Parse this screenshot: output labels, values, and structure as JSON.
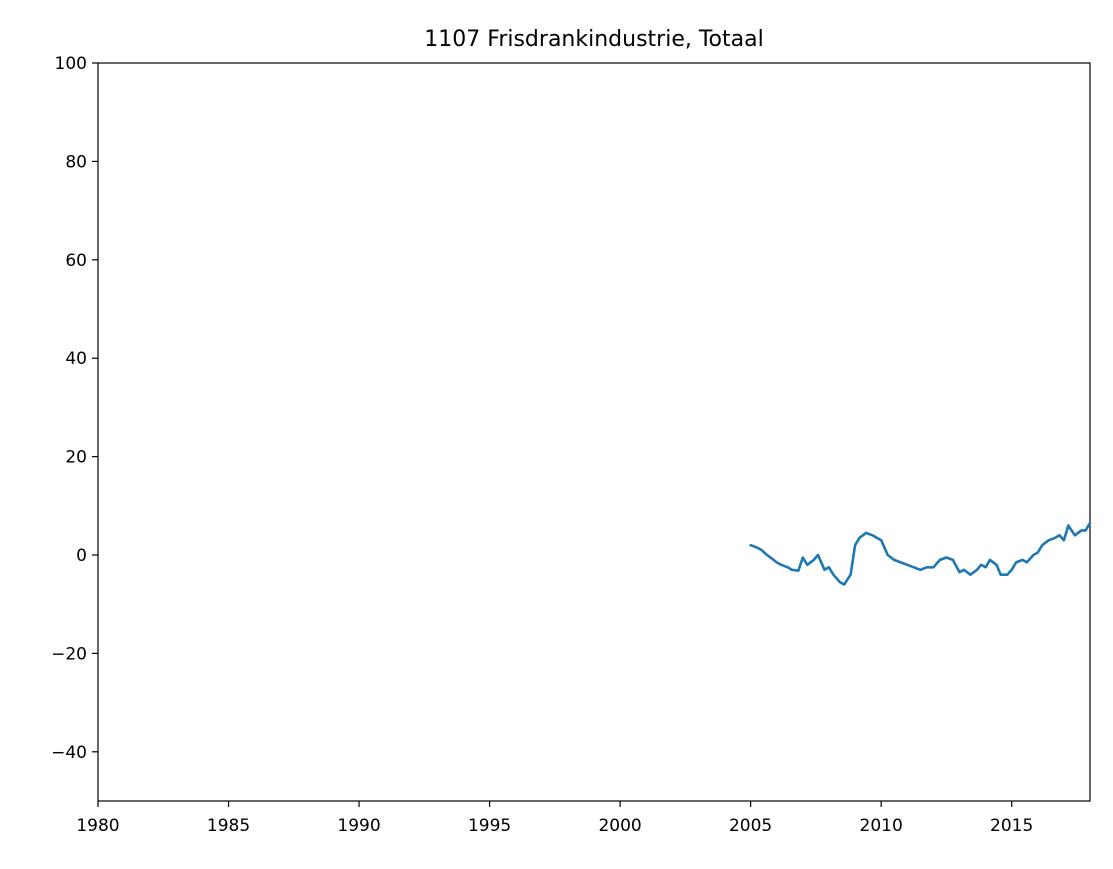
{
  "chart_data": {
    "type": "line",
    "title": "1107 Frisdrankindustrie, Totaal",
    "xlabel": "",
    "ylabel": "",
    "xlim": [
      1980,
      2018
    ],
    "ylim": [
      -50,
      100
    ],
    "x_ticks": [
      1980,
      1985,
      1990,
      1995,
      2000,
      2005,
      2010,
      2015
    ],
    "x_tick_labels": [
      "1980",
      "1985",
      "1990",
      "1995",
      "2000",
      "2005",
      "2010",
      "2015"
    ],
    "y_ticks": [
      -40,
      -20,
      0,
      20,
      40,
      60,
      80,
      100
    ],
    "y_tick_labels": [
      "−40",
      "−20",
      "0",
      "20",
      "40",
      "60",
      "80",
      "100"
    ],
    "grid": false,
    "legend": "none",
    "colors": {
      "series": "#1f77b4"
    },
    "series": [
      {
        "x": [
          2005.0,
          2005.25,
          2005.42,
          2005.58,
          2005.83,
          2006.0,
          2006.17,
          2006.42,
          2006.58,
          2006.83,
          2007.0,
          2007.17,
          2007.42,
          2007.58,
          2007.83,
          2008.0,
          2008.17,
          2008.42,
          2008.58,
          2008.83,
          2009.0,
          2009.17,
          2009.42,
          2009.67,
          2009.83,
          2010.0,
          2010.25,
          2010.5,
          2010.75,
          2011.0,
          2011.25,
          2011.5,
          2011.75,
          2012.0,
          2012.25,
          2012.5,
          2012.75,
          2013.0,
          2013.17,
          2013.42,
          2013.67,
          2013.83,
          2014.0,
          2014.17,
          2014.42,
          2014.58,
          2014.83,
          2015.0,
          2015.17,
          2015.42,
          2015.58,
          2015.83,
          2016.0,
          2016.17,
          2016.42,
          2016.67,
          2016.83,
          2017.0,
          2017.17,
          2017.42,
          2017.67,
          2017.83,
          2018.0
        ],
        "values": [
          2.0,
          1.5,
          1.0,
          0.2,
          -0.8,
          -1.5,
          -2.0,
          -2.5,
          -3.0,
          -3.2,
          -0.5,
          -2.0,
          -1.0,
          0.0,
          -3.0,
          -2.5,
          -4.0,
          -5.5,
          -6.0,
          -4.0,
          2.0,
          3.5,
          4.5,
          4.0,
          3.5,
          3.0,
          0.0,
          -1.0,
          -1.5,
          -2.0,
          -2.5,
          -3.0,
          -2.5,
          -2.5,
          -1.0,
          -0.5,
          -1.0,
          -3.5,
          -3.0,
          -4.0,
          -3.0,
          -2.0,
          -2.5,
          -1.0,
          -2.0,
          -4.0,
          -4.0,
          -3.0,
          -1.5,
          -1.0,
          -1.5,
          0.0,
          0.5,
          2.0,
          3.0,
          3.5,
          4.0,
          3.0,
          6.0,
          4.0,
          5.0,
          5.0,
          6.5
        ]
      }
    ]
  }
}
